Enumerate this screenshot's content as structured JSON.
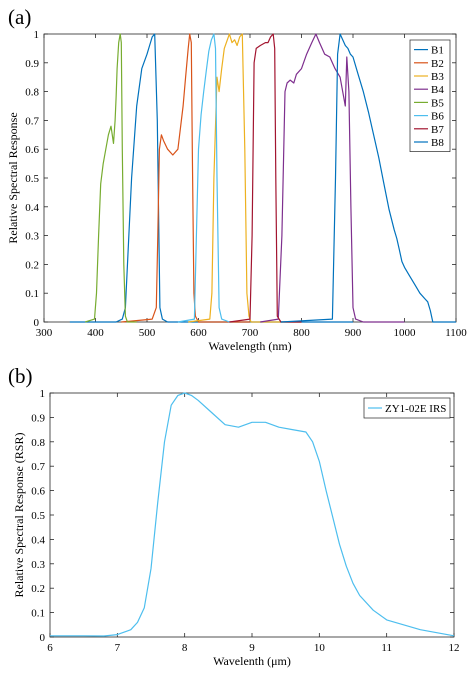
{
  "chart_data": [
    {
      "panel_label": "(a)",
      "type": "line",
      "xlabel": "Wavelength (nm)",
      "ylabel": "Relative Spectral Response",
      "xlim": [
        300,
        1100
      ],
      "ylim": [
        0,
        1
      ],
      "xticks": [
        300,
        400,
        500,
        600,
        700,
        800,
        900,
        1000,
        1100
      ],
      "yticks": [
        0,
        0.1,
        0.2,
        0.3,
        0.4,
        0.5,
        0.6,
        0.7,
        0.8,
        0.9,
        1
      ],
      "grid": false,
      "legend_position": "top-right",
      "series": [
        {
          "name": "B1",
          "color": "#0072bd",
          "x": [
            350,
            440,
            452,
            458,
            470,
            480,
            490,
            500,
            505,
            510,
            515,
            520,
            525,
            530,
            540,
            560,
            600,
            700,
            800,
            900
          ],
          "y": [
            0,
            0,
            0.01,
            0.05,
            0.5,
            0.75,
            0.88,
            0.93,
            0.96,
            0.99,
            1.0,
            0.7,
            0.05,
            0.01,
            0,
            0,
            0,
            0,
            0,
            0
          ]
        },
        {
          "name": "B2",
          "color": "#d95319",
          "x": [
            450,
            510,
            518,
            521,
            524,
            528,
            532,
            540,
            550,
            560,
            570,
            575,
            580,
            583,
            586,
            588,
            591,
            594,
            600,
            700
          ],
          "y": [
            0,
            0.01,
            0.05,
            0.3,
            0.6,
            0.65,
            0.63,
            0.6,
            0.58,
            0.6,
            0.75,
            0.85,
            0.95,
            1.0,
            0.97,
            0.6,
            0.1,
            0.02,
            0,
            0
          ]
        },
        {
          "name": "B3",
          "color": "#edb120",
          "x": [
            580,
            622,
            626,
            630,
            636,
            640,
            645,
            650,
            660,
            665,
            670,
            675,
            680,
            685,
            690,
            694,
            698,
            702,
            720,
            800
          ],
          "y": [
            0,
            0.01,
            0.1,
            0.5,
            0.85,
            0.8,
            0.88,
            0.95,
            1.0,
            0.97,
            0.98,
            0.96,
            0.99,
            1.0,
            0.6,
            0.1,
            0.02,
            0,
            0,
            0
          ]
        },
        {
          "name": "B4",
          "color": "#7e2f8e",
          "x": [
            720,
            755,
            762,
            768,
            772,
            778,
            785,
            790,
            800,
            810,
            820,
            828,
            835,
            845,
            855,
            865,
            875,
            880,
            885,
            888,
            892,
            896,
            900,
            905,
            920,
            1000
          ],
          "y": [
            0,
            0.01,
            0.3,
            0.8,
            0.83,
            0.84,
            0.83,
            0.86,
            0.88,
            0.93,
            0.97,
            1.0,
            0.97,
            0.93,
            0.92,
            0.88,
            0.85,
            0.8,
            0.75,
            0.92,
            0.8,
            0.4,
            0.05,
            0.01,
            0,
            0
          ]
        },
        {
          "name": "B5",
          "color": "#77ac30",
          "x": [
            380,
            398,
            402,
            406,
            410,
            415,
            420,
            425,
            430,
            435,
            438,
            440,
            442,
            445,
            448,
            450,
            452,
            455,
            458,
            462,
            480
          ],
          "y": [
            0,
            0.01,
            0.1,
            0.3,
            0.48,
            0.55,
            0.6,
            0.65,
            0.68,
            0.62,
            0.7,
            0.78,
            0.88,
            0.97,
            1.0,
            0.97,
            0.6,
            0.2,
            0.02,
            0,
            0
          ]
        },
        {
          "name": "B6",
          "color": "#4dbeee",
          "x": [
            560,
            592,
            596,
            600,
            605,
            610,
            615,
            620,
            625,
            630,
            633,
            636,
            640,
            645,
            660
          ],
          "y": [
            0,
            0.01,
            0.3,
            0.6,
            0.72,
            0.8,
            0.87,
            0.94,
            0.98,
            1.0,
            0.95,
            0.5,
            0.05,
            0.01,
            0
          ]
        },
        {
          "name": "B7",
          "color": "#a2142f",
          "x": [
            660,
            700,
            704,
            708,
            712,
            720,
            730,
            735,
            740,
            745,
            748,
            750,
            753,
            760,
            800
          ],
          "y": [
            0,
            0.01,
            0.3,
            0.9,
            0.95,
            0.96,
            0.97,
            0.97,
            0.99,
            1.0,
            0.95,
            0.5,
            0.02,
            0,
            0
          ]
        },
        {
          "name": "B8",
          "color": "#0072bd",
          "x": [
            760,
            860,
            866,
            870,
            875,
            880,
            885,
            890,
            895,
            900,
            910,
            920,
            930,
            940,
            950,
            960,
            970,
            980,
            985,
            990,
            995,
            1000,
            1010,
            1020,
            1030,
            1040,
            1045,
            1050,
            1055,
            1070,
            1100
          ],
          "y": [
            0,
            0.01,
            0.5,
            0.93,
            1.0,
            0.98,
            0.96,
            0.95,
            0.93,
            0.92,
            0.86,
            0.8,
            0.73,
            0.65,
            0.57,
            0.48,
            0.39,
            0.32,
            0.29,
            0.25,
            0.21,
            0.19,
            0.16,
            0.13,
            0.1,
            0.08,
            0.07,
            0.04,
            0,
            0,
            0
          ]
        }
      ]
    },
    {
      "panel_label": "(b)",
      "type": "line",
      "xlabel": "Wavelenth (μm)",
      "ylabel": "Relative Spectral Response (RSR)",
      "xlim": [
        6,
        12
      ],
      "ylim": [
        0,
        1
      ],
      "xticks": [
        6,
        7,
        8,
        9,
        10,
        11,
        12
      ],
      "yticks": [
        0,
        0.1,
        0.2,
        0.3,
        0.4,
        0.5,
        0.6,
        0.7,
        0.8,
        0.9,
        1
      ],
      "grid": false,
      "legend_position": "top-right",
      "series": [
        {
          "name": "ZY1-02E IRS",
          "color": "#4dbeee",
          "x": [
            6.0,
            6.5,
            6.8,
            7.0,
            7.2,
            7.3,
            7.4,
            7.5,
            7.6,
            7.7,
            7.8,
            7.9,
            8.0,
            8.1,
            8.2,
            8.4,
            8.6,
            8.8,
            9.0,
            9.2,
            9.4,
            9.6,
            9.8,
            9.9,
            10.0,
            10.1,
            10.2,
            10.3,
            10.4,
            10.5,
            10.6,
            10.8,
            11.0,
            11.5,
            12.0
          ],
          "y": [
            0.005,
            0.005,
            0.004,
            0.01,
            0.03,
            0.06,
            0.12,
            0.28,
            0.55,
            0.8,
            0.95,
            0.99,
            1.0,
            0.99,
            0.97,
            0.92,
            0.87,
            0.86,
            0.88,
            0.88,
            0.86,
            0.85,
            0.84,
            0.8,
            0.72,
            0.6,
            0.49,
            0.38,
            0.29,
            0.22,
            0.17,
            0.11,
            0.07,
            0.03,
            0.005
          ]
        }
      ]
    }
  ]
}
